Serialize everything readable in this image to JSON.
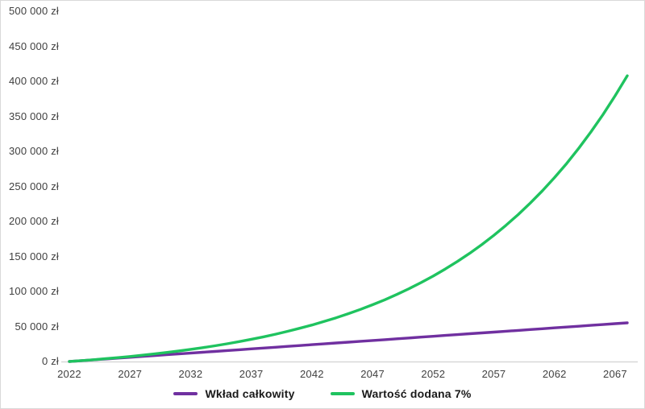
{
  "chart_data": {
    "type": "line",
    "title": "",
    "xlabel": "",
    "ylabel": "",
    "currency_suffix": "zł",
    "x": [
      2022,
      2023,
      2024,
      2025,
      2026,
      2027,
      2028,
      2029,
      2030,
      2031,
      2032,
      2033,
      2034,
      2035,
      2036,
      2037,
      2038,
      2039,
      2040,
      2041,
      2042,
      2043,
      2044,
      2045,
      2046,
      2047,
      2048,
      2049,
      2050,
      2051,
      2052,
      2053,
      2054,
      2055,
      2056,
      2057,
      2058,
      2059,
      2060,
      2061,
      2062,
      2063,
      2064,
      2065,
      2066,
      2067,
      2068
    ],
    "series": [
      {
        "name": "Wkład całkowity",
        "color": "#7030a0",
        "values": [
          0,
          1200,
          2400,
          3600,
          4800,
          6000,
          7200,
          8400,
          9600,
          10800,
          12000,
          13200,
          14400,
          15600,
          16800,
          18000,
          19200,
          20400,
          21600,
          22800,
          24000,
          25200,
          26400,
          27600,
          28800,
          30000,
          31200,
          32400,
          33600,
          34800,
          36000,
          37200,
          38400,
          39600,
          40800,
          42000,
          43200,
          44400,
          45600,
          46800,
          48000,
          49200,
          50400,
          51600,
          52800,
          54000,
          55200
        ]
      },
      {
        "name": "Wartość dodana 7%",
        "color": "#1fc35f",
        "values": [
          0,
          1239,
          2568,
          3993,
          5521,
          7159,
          8916,
          10800,
          12820,
          14986,
          17308,
          19799,
          22469,
          25333,
          28404,
          31696,
          35227,
          39012,
          43072,
          47425,
          52093,
          57098,
          62465,
          68219,
          74390,
          81007,
          88103,
          95711,
          103869,
          112617,
          121998,
          132056,
          142842,
          154408,
          166809,
          180107,
          194367,
          209657,
          226052,
          243633,
          262485,
          282700,
          304376,
          327619,
          352543,
          379267,
          407923
        ]
      }
    ],
    "x_ticks": [
      2022,
      2027,
      2032,
      2037,
      2042,
      2047,
      2052,
      2057,
      2062,
      2067
    ],
    "y_ticks": [
      {
        "value": 0,
        "label": "0 zł"
      },
      {
        "value": 50000,
        "label": "50 000 zł"
      },
      {
        "value": 100000,
        "label": "100 000 zł"
      },
      {
        "value": 150000,
        "label": "150 000 zł"
      },
      {
        "value": 200000,
        "label": "200 000 zł"
      },
      {
        "value": 250000,
        "label": "250 000 zł"
      },
      {
        "value": 300000,
        "label": "300 000 zł"
      },
      {
        "value": 350000,
        "label": "350 000 zł"
      },
      {
        "value": 400000,
        "label": "400 000 zł"
      },
      {
        "value": 450000,
        "label": "450 000 zł"
      },
      {
        "value": 500000,
        "label": "500 000 zł"
      }
    ],
    "ylim": [
      0,
      500000
    ],
    "xlim": [
      2022,
      2068
    ],
    "grid": false,
    "legend_position": "bottom",
    "axis_line_color": "#d8d8d8",
    "tick_text_color": "#404040",
    "background_color": "#ffffff",
    "border_color": "#d9d9d9"
  }
}
